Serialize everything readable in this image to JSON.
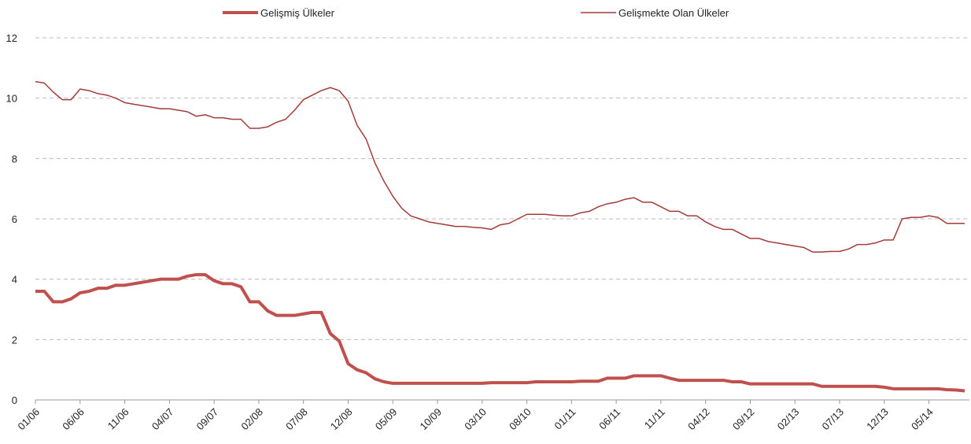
{
  "chart_data": {
    "type": "line",
    "categories": [
      "01/06",
      null,
      null,
      null,
      null,
      "06/06",
      null,
      null,
      null,
      null,
      "11/06",
      null,
      null,
      null,
      null,
      "04/07",
      null,
      null,
      null,
      null,
      "09/07",
      null,
      null,
      null,
      null,
      "02/08",
      null,
      null,
      null,
      null,
      "07/08",
      null,
      null,
      null,
      null,
      "12/08",
      null,
      null,
      null,
      null,
      "05/09",
      null,
      null,
      null,
      null,
      "10/09",
      null,
      null,
      null,
      null,
      "03/10",
      null,
      null,
      null,
      null,
      "08/10",
      null,
      null,
      null,
      null,
      "01/11",
      null,
      null,
      null,
      null,
      "06/11",
      null,
      null,
      null,
      null,
      "11/11",
      null,
      null,
      null,
      null,
      "04/12",
      null,
      null,
      null,
      null,
      "09/12",
      null,
      null,
      null,
      null,
      "02/13",
      null,
      null,
      null,
      null,
      "07/13",
      null,
      null,
      null,
      null,
      "12/13",
      null,
      null,
      null,
      null,
      "05/14",
      null,
      null,
      null,
      null
    ],
    "series": [
      {
        "name": "Gelişmiş Ülkeler",
        "color": "#c0504d",
        "width": 4,
        "values": [
          3.6,
          3.6,
          3.25,
          3.25,
          3.35,
          3.55,
          3.6,
          3.7,
          3.7,
          3.8,
          3.8,
          3.85,
          3.9,
          3.95,
          4.0,
          4.0,
          4.0,
          4.1,
          4.15,
          4.15,
          3.95,
          3.85,
          3.85,
          3.75,
          3.25,
          3.25,
          2.95,
          2.8,
          2.8,
          2.8,
          2.85,
          2.9,
          2.9,
          2.2,
          1.95,
          1.2,
          1.0,
          0.9,
          0.7,
          0.6,
          0.55,
          0.55,
          0.55,
          0.55,
          0.55,
          0.55,
          0.55,
          0.55,
          0.55,
          0.55,
          0.55,
          0.57,
          0.57,
          0.57,
          0.57,
          0.57,
          0.6,
          0.6,
          0.6,
          0.6,
          0.6,
          0.62,
          0.62,
          0.62,
          0.72,
          0.72,
          0.72,
          0.8,
          0.8,
          0.8,
          0.8,
          0.72,
          0.65,
          0.65,
          0.65,
          0.65,
          0.65,
          0.65,
          0.6,
          0.6,
          0.53,
          0.53,
          0.53,
          0.53,
          0.53,
          0.53,
          0.53,
          0.53,
          0.45,
          0.45,
          0.45,
          0.45,
          0.45,
          0.45,
          0.45,
          0.42,
          0.37,
          0.37,
          0.37,
          0.37,
          0.37,
          0.37,
          0.34,
          0.33,
          0.3
        ]
      },
      {
        "name": "Gelişmekte Olan Ülkeler",
        "color": "#a33b3b",
        "width": 1.5,
        "values": [
          10.55,
          10.5,
          10.2,
          9.95,
          9.95,
          10.3,
          10.25,
          10.15,
          10.1,
          10.0,
          9.85,
          9.8,
          9.75,
          9.7,
          9.65,
          9.65,
          9.6,
          9.55,
          9.4,
          9.45,
          9.35,
          9.35,
          9.3,
          9.3,
          9.0,
          9.0,
          9.05,
          9.2,
          9.3,
          9.6,
          9.95,
          10.1,
          10.25,
          10.35,
          10.25,
          9.9,
          9.1,
          8.65,
          7.85,
          7.25,
          6.75,
          6.35,
          6.1,
          6.0,
          5.9,
          5.85,
          5.8,
          5.75,
          5.75,
          5.72,
          5.7,
          5.65,
          5.8,
          5.85,
          6.0,
          6.15,
          6.15,
          6.15,
          6.12,
          6.1,
          6.1,
          6.2,
          6.25,
          6.4,
          6.5,
          6.55,
          6.65,
          6.7,
          6.55,
          6.55,
          6.4,
          6.25,
          6.25,
          6.1,
          6.1,
          5.9,
          5.75,
          5.65,
          5.65,
          5.5,
          5.35,
          5.35,
          5.25,
          5.2,
          5.15,
          5.1,
          5.05,
          4.9,
          4.9,
          4.92,
          4.92,
          5.0,
          5.15,
          5.15,
          5.2,
          5.3,
          5.3,
          6.0,
          6.05,
          6.05,
          6.1,
          6.05,
          5.85,
          5.85,
          5.85
        ]
      }
    ],
    "ylim": [
      0,
      12
    ],
    "yticks": [
      0,
      2,
      4,
      6,
      8,
      10,
      12
    ],
    "grid": true
  }
}
